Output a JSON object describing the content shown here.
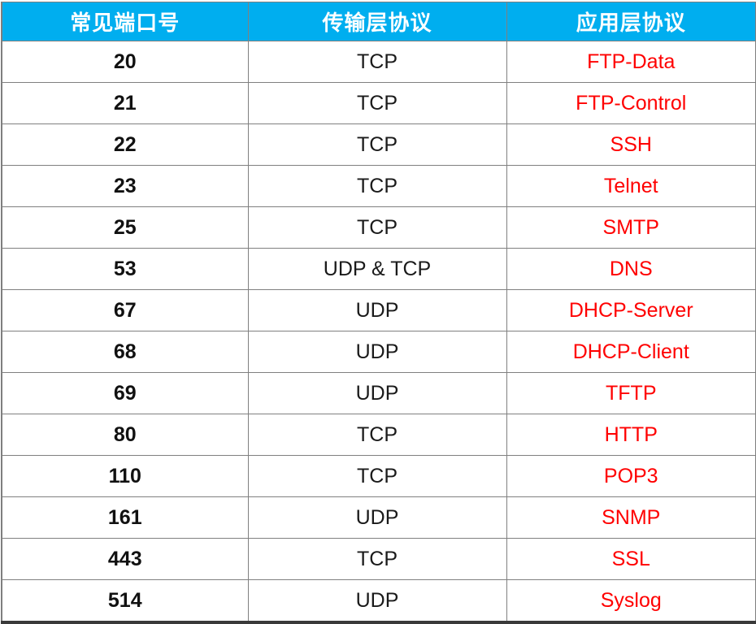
{
  "table": {
    "title": "common-ports-table",
    "columns": [
      {
        "label": "常见端口号"
      },
      {
        "label": "传输层协议"
      },
      {
        "label": "应用层协议"
      }
    ],
    "rows": [
      {
        "port": "20",
        "transport": "TCP",
        "application": "FTP-Data"
      },
      {
        "port": "21",
        "transport": "TCP",
        "application": "FTP-Control"
      },
      {
        "port": "22",
        "transport": "TCP",
        "application": "SSH"
      },
      {
        "port": "23",
        "transport": "TCP",
        "application": "Telnet"
      },
      {
        "port": "25",
        "transport": "TCP",
        "application": "SMTP"
      },
      {
        "port": "53",
        "transport": "UDP & TCP",
        "application": "DNS"
      },
      {
        "port": "67",
        "transport": "UDP",
        "application": "DHCP-Server"
      },
      {
        "port": "68",
        "transport": "UDP",
        "application": "DHCP-Client"
      },
      {
        "port": "69",
        "transport": "UDP",
        "application": "TFTP"
      },
      {
        "port": "80",
        "transport": "TCP",
        "application": "HTTP"
      },
      {
        "port": "110",
        "transport": "TCP",
        "application": "POP3"
      },
      {
        "port": "161",
        "transport": "UDP",
        "application": "SNMP"
      },
      {
        "port": "443",
        "transport": "TCP",
        "application": "SSL"
      },
      {
        "port": "514",
        "transport": "UDP",
        "application": "Syslog"
      }
    ],
    "colors": {
      "header_background": "#00AEEF",
      "header_text": "#FFFFFF",
      "port_text": "#111111",
      "transport_text": "#1A1A1A",
      "application_text": "#FF0000",
      "grid_border": "#808080",
      "outer_bottom_border": "#3A3A3A"
    }
  }
}
